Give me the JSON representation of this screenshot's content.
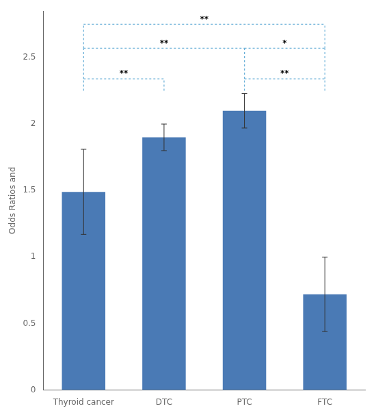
{
  "chart_data": {
    "type": "bar",
    "categories": [
      "Thyroid cancer",
      "DTC",
      "PTC",
      "FTC"
    ],
    "values": [
      1.49,
      1.9,
      2.1,
      0.72
    ],
    "errors": [
      0.32,
      0.1,
      0.13,
      0.28
    ],
    "color": "#4a7ab5",
    "ylabel": "Odds Ratios and",
    "ylim": [
      0,
      2.85
    ],
    "yticks": [
      0,
      0.5,
      1,
      1.5,
      2,
      2.5
    ],
    "grid": false,
    "annotations": [
      {
        "text": "**",
        "x1": "Thyroid cancer",
        "x2": "DTC",
        "y_top": 2.34,
        "y_bot_left": 2.25,
        "y_bot_right": 2.25,
        "color": "#6ab0d8"
      },
      {
        "text": "**",
        "x1": "PTC",
        "x2": "FTC",
        "y_top": 2.34,
        "y_bot_left": 2.25,
        "y_bot_right": 2.25,
        "color": "#6ab0d8"
      },
      {
        "text": "**",
        "x1": "Thyroid cancer",
        "x2": "PTC",
        "y_top": 2.57,
        "y_bot_left": 2.34,
        "y_bot_right": 2.34,
        "color": "#6ab0d8"
      },
      {
        "text": "*",
        "x1": "PTC",
        "x2": "FTC",
        "y_top": 2.57,
        "y_bot_left": 2.34,
        "y_bot_right": 2.34,
        "color": "#6ab0d8"
      },
      {
        "text": "**",
        "x1": "Thyroid cancer",
        "x2": "FTC",
        "y_top": 2.75,
        "y_bot_left": 2.57,
        "y_bot_right": 2.57,
        "color": "#6ab0d8"
      }
    ]
  }
}
